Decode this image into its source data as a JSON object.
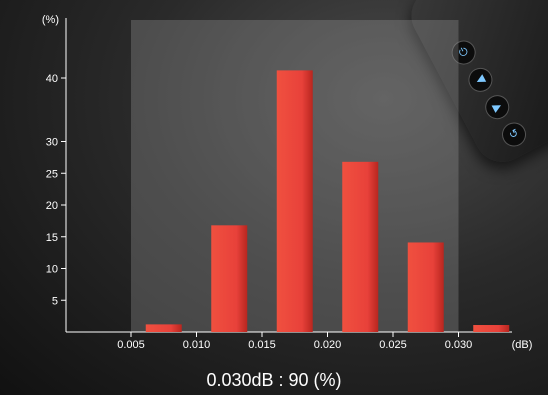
{
  "chart_data": {
    "type": "bar",
    "categories": [
      "0.005–0.010",
      "0.010–0.015",
      "0.015–0.020",
      "0.020–0.025",
      "0.025–0.030",
      "0.030–"
    ],
    "values": [
      1.2,
      16.8,
      41.2,
      26.8,
      14.1,
      1.1
    ],
    "x_ticks": [
      "0.005",
      "0.010",
      "0.015",
      "0.020",
      "0.025",
      "0.030"
    ],
    "y_ticks": [
      5,
      10,
      15,
      20,
      25,
      30,
      40
    ],
    "ylabel": "(%)",
    "xlabel": "(dB)",
    "ylim": [
      0,
      45
    ],
    "bar_color": "#e8413a",
    "highlight_range": [
      "0.005",
      "0.030"
    ],
    "grid": false
  },
  "caption": "0.030dB : 90 (%)",
  "device": {
    "buttons": [
      "power-icon",
      "play-left-icon",
      "play-right-icon",
      "back-icon"
    ],
    "accent": "#7ec8ff"
  }
}
